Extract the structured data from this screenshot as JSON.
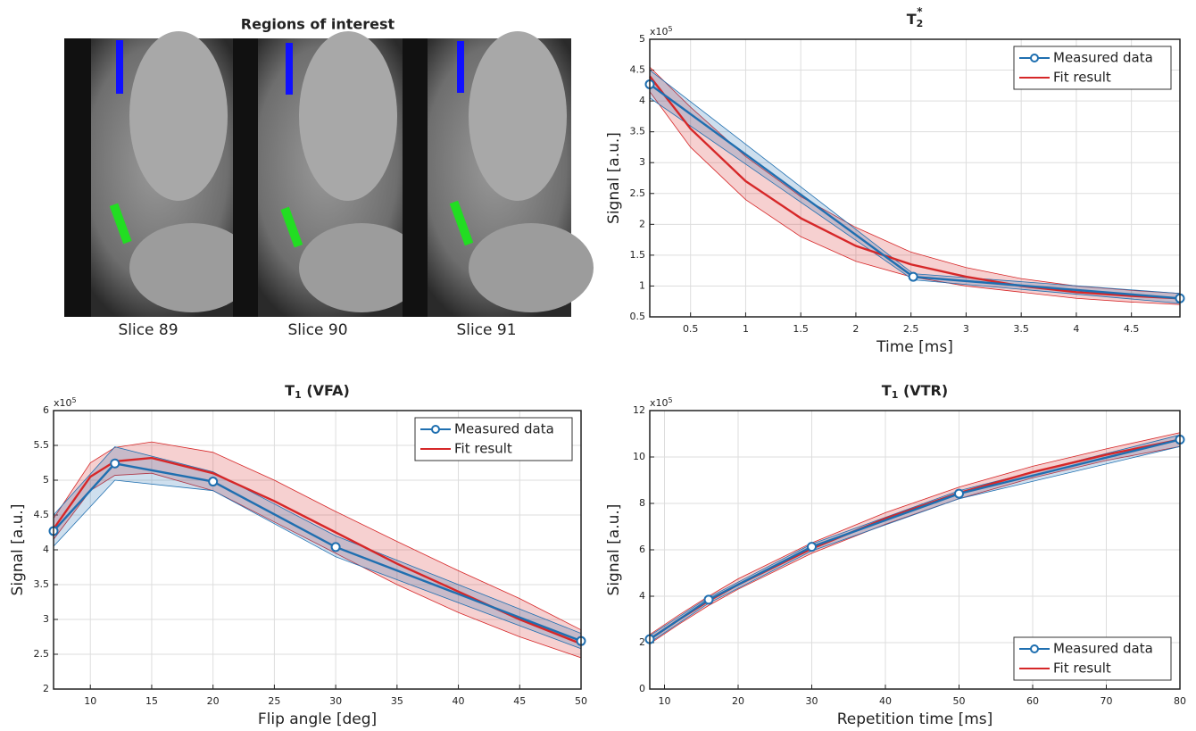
{
  "image_panel": {
    "title": "Regions of interest",
    "slices": [
      "Slice 89",
      "Slice 90",
      "Slice 91"
    ]
  },
  "chart_data": [
    {
      "type": "line",
      "title": "T",
      "title_sub": "2",
      "title_sup": "*",
      "xlabel": "Time [ms]",
      "ylabel": "Signal [a.u.]",
      "y_multiplier": "x10",
      "y_multiplier_exp": "5",
      "xlim": [
        0.13,
        4.94
      ],
      "xticks": [
        0.5,
        1,
        1.5,
        2,
        2.5,
        3,
        3.5,
        4,
        4.5
      ],
      "ylim": [
        0.5,
        5
      ],
      "yticks": [
        0.5,
        1,
        1.5,
        2,
        2.5,
        3,
        3.5,
        4,
        4.5,
        5
      ],
      "grid": true,
      "legend": "top-right",
      "series": [
        {
          "name": "Measured data",
          "color": "#1f6fb0",
          "marker": "circle",
          "x": [
            0.13,
            2.52,
            4.94
          ],
          "values": [
            4.27,
            1.15,
            0.8
          ],
          "upper": [
            4.5,
            1.2,
            0.88
          ],
          "lower": [
            4.05,
            1.1,
            0.72
          ]
        },
        {
          "name": "Fit result",
          "color": "#d62728",
          "x": [
            0.13,
            0.5,
            1,
            1.5,
            2,
            2.5,
            3,
            3.5,
            4,
            4.5,
            4.94
          ],
          "values": [
            4.4,
            3.55,
            2.7,
            2.1,
            1.65,
            1.35,
            1.15,
            1.0,
            0.9,
            0.84,
            0.8
          ],
          "upper": [
            4.55,
            3.9,
            3.1,
            2.45,
            1.95,
            1.55,
            1.3,
            1.12,
            1.0,
            0.93,
            0.88
          ],
          "lower": [
            4.15,
            3.25,
            2.4,
            1.8,
            1.4,
            1.15,
            1.0,
            0.9,
            0.8,
            0.74,
            0.7
          ]
        }
      ]
    },
    {
      "type": "line",
      "title": "T",
      "title_sub": "1",
      "title_rest": " (VFA)",
      "xlabel": "Flip angle [deg]",
      "ylabel": "Signal [a.u.]",
      "y_multiplier": "x10",
      "y_multiplier_exp": "5",
      "xlim": [
        7,
        50
      ],
      "xticks": [
        10,
        15,
        20,
        25,
        30,
        35,
        40,
        45,
        50
      ],
      "ylim": [
        2,
        6
      ],
      "yticks": [
        2,
        2.5,
        3,
        3.5,
        4,
        4.5,
        5,
        5.5,
        6
      ],
      "grid": true,
      "legend": "top-right",
      "series": [
        {
          "name": "Measured data",
          "color": "#1f6fb0",
          "marker": "circle",
          "x": [
            7,
            12,
            20,
            30,
            50
          ],
          "values": [
            4.27,
            5.24,
            4.98,
            4.04,
            2.69
          ],
          "upper": [
            4.5,
            5.48,
            5.12,
            4.2,
            2.8
          ],
          "lower": [
            4.05,
            5.0,
            4.85,
            3.9,
            2.58
          ]
        },
        {
          "name": "Fit result",
          "color": "#d62728",
          "x": [
            7,
            10,
            12,
            15,
            20,
            25,
            30,
            35,
            40,
            45,
            50
          ],
          "values": [
            4.3,
            5.05,
            5.27,
            5.32,
            5.1,
            4.7,
            4.25,
            3.8,
            3.4,
            3.0,
            2.65
          ],
          "upper": [
            4.45,
            5.25,
            5.47,
            5.55,
            5.4,
            5.0,
            4.55,
            4.12,
            3.7,
            3.3,
            2.85
          ],
          "lower": [
            4.15,
            4.85,
            5.07,
            5.1,
            4.85,
            4.4,
            3.95,
            3.5,
            3.1,
            2.75,
            2.45
          ]
        }
      ]
    },
    {
      "type": "line",
      "title": "T",
      "title_sub": "1",
      "title_rest": " (VTR)",
      "xlabel": "Repetition time [ms]",
      "ylabel": "Signal [a.u.]",
      "y_multiplier": "x10",
      "y_multiplier_exp": "5",
      "xlim": [
        8,
        80
      ],
      "xticks": [
        10,
        20,
        30,
        40,
        50,
        60,
        70,
        80
      ],
      "ylim": [
        0,
        12
      ],
      "yticks": [
        0,
        2,
        4,
        6,
        8,
        10,
        12
      ],
      "grid": true,
      "legend": "bottom-right",
      "series": [
        {
          "name": "Measured data",
          "color": "#1f6fb0",
          "marker": "circle",
          "x": [
            8,
            16,
            30,
            50,
            80
          ],
          "values": [
            2.15,
            3.85,
            6.13,
            8.42,
            10.75
          ],
          "upper": [
            2.3,
            3.95,
            6.25,
            8.55,
            10.95
          ],
          "lower": [
            2.0,
            3.7,
            5.95,
            8.2,
            10.45
          ]
        },
        {
          "name": "Fit result",
          "color": "#d62728",
          "x": [
            8,
            12,
            16,
            20,
            30,
            40,
            50,
            60,
            70,
            80
          ],
          "values": [
            2.15,
            3.0,
            3.8,
            4.5,
            6.05,
            7.35,
            8.45,
            9.35,
            10.1,
            10.75
          ],
          "upper": [
            2.35,
            3.2,
            4.0,
            4.75,
            6.3,
            7.6,
            8.7,
            9.6,
            10.35,
            11.05
          ],
          "lower": [
            1.95,
            2.8,
            3.6,
            4.3,
            5.85,
            7.1,
            8.2,
            9.1,
            9.85,
            10.45
          ]
        }
      ]
    }
  ]
}
